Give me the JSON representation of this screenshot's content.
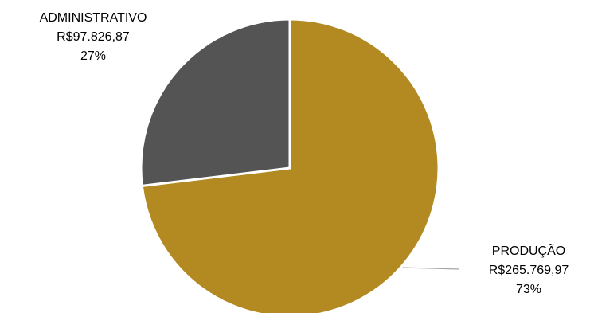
{
  "chart_data": {
    "type": "pie",
    "slices": [
      {
        "category": "PRODUÇÃO",
        "value": 265769.97,
        "value_label": "R$265.769,97",
        "percent": 73,
        "percent_label": "73%",
        "color": "#B38A22"
      },
      {
        "category": "ADMINISTRATIVO",
        "value": 97826.87,
        "value_label": "R$97.826,87",
        "percent": 27,
        "percent_label": "27%",
        "color": "#545454"
      }
    ],
    "legend": "none",
    "data_labels": "category, value, percent",
    "leader_line_color": "#A6A6A6"
  }
}
